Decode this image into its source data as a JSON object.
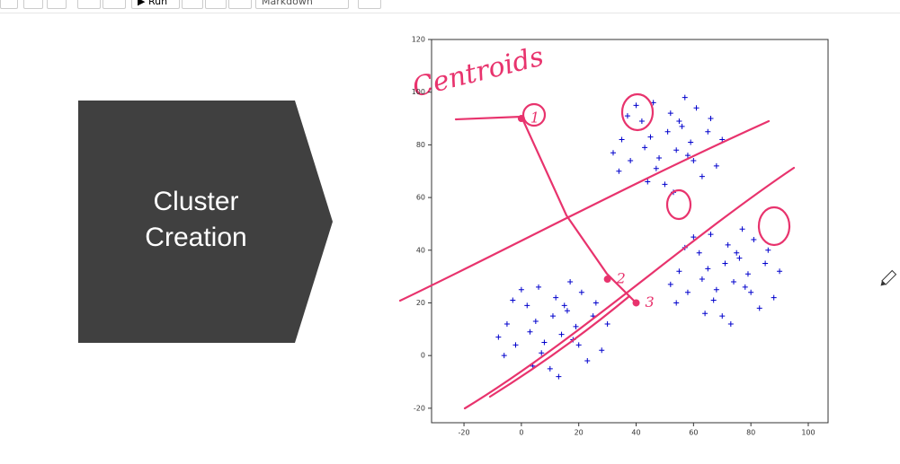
{
  "toolbar": {
    "run_label": "Run",
    "cell_type": "Markdown"
  },
  "slide": {
    "label_lines": [
      "Cluster",
      "Creation"
    ]
  },
  "chart_data": {
    "type": "scatter",
    "color": "#0000cc",
    "xlim": [
      -31.3,
      106.9
    ],
    "ylim": [
      -25.5,
      120
    ],
    "xticks": [
      -20,
      0,
      20,
      40,
      60,
      80,
      100
    ],
    "yticks": [
      -20,
      0,
      20,
      40,
      60,
      80,
      100,
      120
    ],
    "x": [
      5,
      18,
      12,
      -2,
      25,
      10,
      2,
      16,
      7,
      21,
      -5,
      14,
      28,
      4,
      19,
      0,
      11,
      23,
      -8,
      17,
      8,
      26,
      -3,
      13,
      3,
      20,
      6,
      30,
      -6,
      15,
      45,
      58,
      52,
      38,
      65,
      50,
      42,
      56,
      47,
      61,
      35,
      54,
      68,
      44,
      59,
      40,
      51,
      63,
      32,
      57,
      48,
      66,
      37,
      53,
      43,
      60,
      46,
      70,
      34,
      55,
      65,
      78,
      72,
      58,
      85,
      70,
      62,
      76,
      67,
      81,
      55,
      74,
      88,
      64,
      79,
      60,
      71,
      83,
      52,
      77,
      68,
      86,
      57,
      73,
      63,
      80,
      66,
      90,
      54,
      75
    ],
    "y": [
      13,
      6,
      22,
      4,
      15,
      -5,
      19,
      17,
      1,
      24,
      12,
      8,
      2,
      -4,
      11,
      25,
      15,
      -2,
      7,
      28,
      5,
      20,
      21,
      -8,
      9,
      4,
      26,
      12,
      0,
      19,
      83,
      76,
      92,
      74,
      85,
      65,
      89,
      87,
      71,
      94,
      82,
      78,
      72,
      66,
      81,
      95,
      85,
      68,
      77,
      98,
      75,
      90,
      91,
      62,
      79,
      74,
      96,
      82,
      70,
      89,
      33,
      26,
      42,
      24,
      35,
      15,
      39,
      37,
      21,
      44,
      32,
      28,
      22,
      16,
      31,
      45,
      35,
      18,
      27,
      48,
      25,
      40,
      41,
      12,
      29,
      24,
      46,
      32,
      20,
      39
    ],
    "annotation": {
      "title": "Centroids",
      "color": "#e8336d",
      "x": [
        0,
        30,
        40
      ],
      "y": [
        90,
        29,
        20
      ],
      "labels": [
        "1",
        "2",
        "3"
      ]
    }
  }
}
